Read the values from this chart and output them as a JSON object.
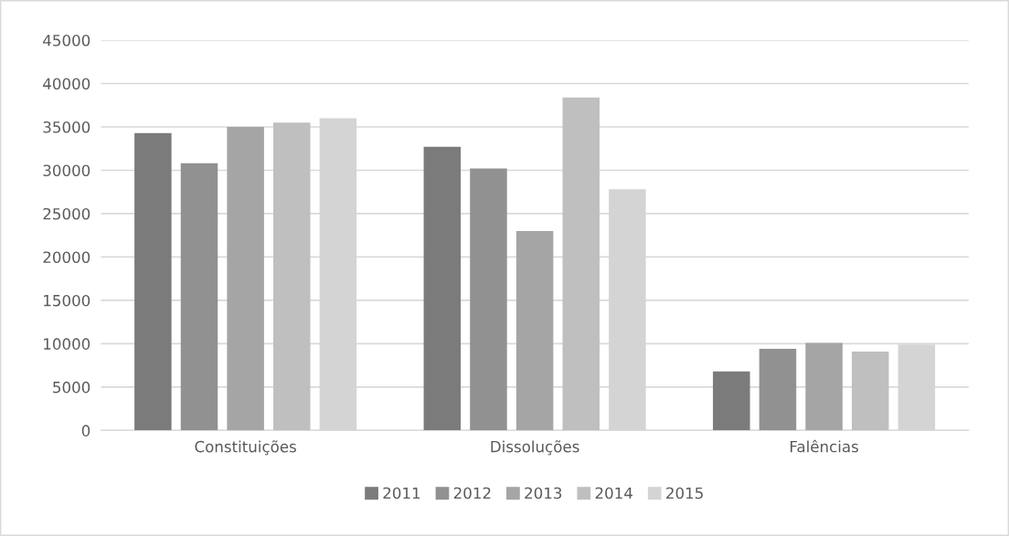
{
  "chart_data": {
    "type": "bar",
    "categories": [
      "Constituições",
      "Dissoluções",
      "Falências"
    ],
    "series": [
      {
        "name": "2011",
        "color": "#7b7b7b",
        "values": [
          34300,
          32700,
          6800
        ]
      },
      {
        "name": "2012",
        "color": "#919191",
        "values": [
          30800,
          30200,
          9400
        ]
      },
      {
        "name": "2013",
        "color": "#a5a5a5",
        "values": [
          35000,
          23000,
          10100
        ]
      },
      {
        "name": "2014",
        "color": "#bfbfbf",
        "values": [
          35500,
          38400,
          9100
        ]
      },
      {
        "name": "2015",
        "color": "#d4d4d4",
        "values": [
          36000,
          27800,
          9900
        ]
      }
    ],
    "ylim": [
      0,
      45000
    ],
    "yticks": [
      0,
      5000,
      10000,
      15000,
      20000,
      25000,
      30000,
      35000,
      40000,
      45000
    ],
    "grid": "y",
    "legend": "bottom"
  }
}
